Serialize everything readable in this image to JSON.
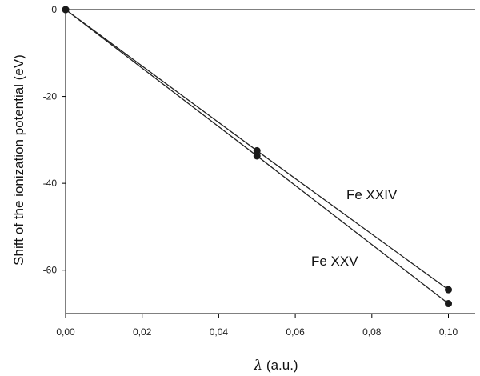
{
  "chart_data": {
    "type": "line",
    "title": "",
    "xlabel_symbol": "λ",
    "xlabel_units": " (a.u.)",
    "ylabel": "Shift of the ionization potential (eV)",
    "xlim": [
      0,
      0.107
    ],
    "ylim": [
      -70,
      0
    ],
    "x_ticks": [
      0,
      0.02,
      0.04,
      0.06,
      0.08,
      0.1
    ],
    "x_tick_labels": [
      "0,00",
      "0,02",
      "0,04",
      "0,06",
      "0,08",
      "0,10"
    ],
    "y_ticks": [
      0,
      -20,
      -40,
      -60
    ],
    "y_tick_labels": [
      "0",
      "-20",
      "-40",
      "-60"
    ],
    "grid": false,
    "series": [
      {
        "name": "Fe XXIV",
        "x": [
          0,
          0.05,
          0.1
        ],
        "y": [
          0,
          -32.5,
          -64.5
        ]
      },
      {
        "name": "Fe XXV",
        "x": [
          0,
          0.05,
          0.1
        ],
        "y": [
          0,
          -33.7,
          -67.7
        ]
      }
    ],
    "colors": {
      "line": "#222222",
      "marker": "#1a1a1a",
      "axis": "#000000"
    }
  }
}
